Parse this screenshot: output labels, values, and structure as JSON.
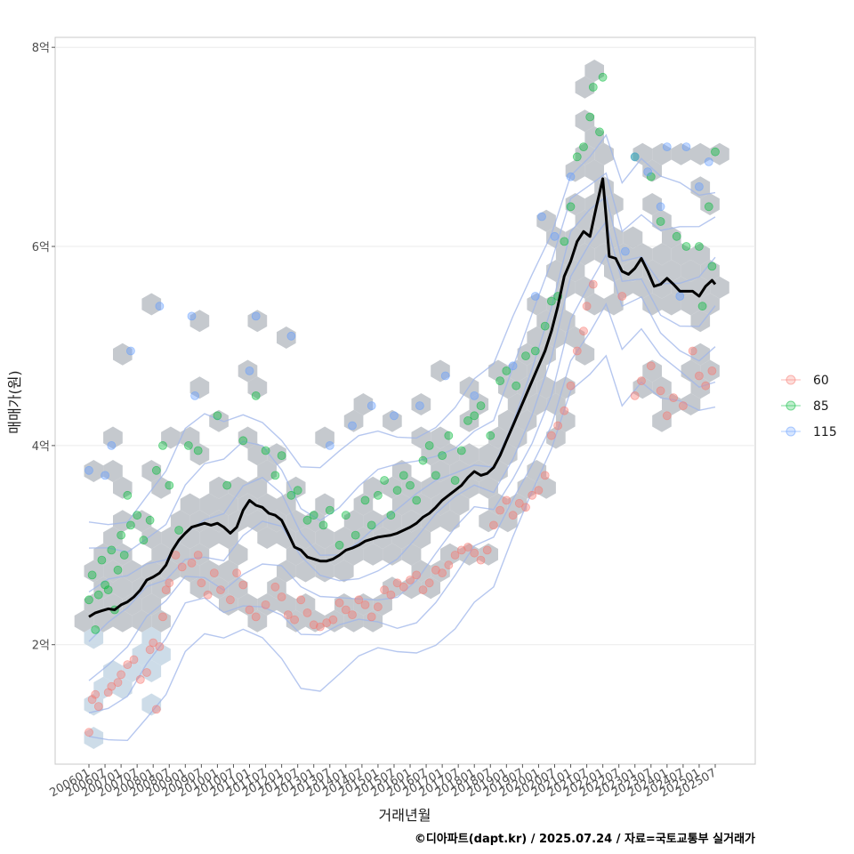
{
  "chart_data": {
    "type": "scatter",
    "xlabel": "거래년월",
    "ylabel": "매매가(원)",
    "caption": "©디아파트(dapt.kr) / 2025.07.24 / 자료=국토교통부 실거래가",
    "ylim": [
      0.8,
      8.1
    ],
    "yticks": [
      {
        "value": 2,
        "label": "2억"
      },
      {
        "value": 4,
        "label": "4억"
      },
      {
        "value": 6,
        "label": "6억"
      },
      {
        "value": 8,
        "label": "8억"
      }
    ],
    "xlim": [
      2005.5,
      2026.2
    ],
    "xticks": [
      "200601",
      "200607",
      "200701",
      "200707",
      "200801",
      "200807",
      "200901",
      "200907",
      "201001",
      "201007",
      "201101",
      "201107",
      "201201",
      "201207",
      "201301",
      "201307",
      "201401",
      "201407",
      "201501",
      "201507",
      "201601",
      "201607",
      "201701",
      "201707",
      "201801",
      "201807",
      "201901",
      "201907",
      "202001",
      "202007",
      "202101",
      "202107",
      "202201",
      "202207",
      "202301",
      "202307",
      "202401",
      "202407",
      "202501",
      "202507"
    ],
    "legend": {
      "placement": "right",
      "items": [
        {
          "label": "60",
          "color": "#F8766D"
        },
        {
          "label": "85",
          "color": "#00BA38"
        },
        {
          "label": "115",
          "color": "#619CFF"
        }
      ]
    },
    "colors": {
      "hex_fill": "#bfc3c9",
      "hex_light": "#c8d8e6",
      "median_line": "#000000",
      "density_contour": "#9db4ea"
    },
    "median_line": [
      [
        2006.0,
        2.28
      ],
      [
        2006.2,
        2.32
      ],
      [
        2006.4,
        2.34
      ],
      [
        2006.6,
        2.36
      ],
      [
        2006.8,
        2.35
      ],
      [
        2007.0,
        2.4
      ],
      [
        2007.2,
        2.43
      ],
      [
        2007.4,
        2.48
      ],
      [
        2007.6,
        2.55
      ],
      [
        2007.8,
        2.65
      ],
      [
        2008.0,
        2.68
      ],
      [
        2008.2,
        2.72
      ],
      [
        2008.4,
        2.8
      ],
      [
        2008.6,
        2.95
      ],
      [
        2008.8,
        3.05
      ],
      [
        2009.0,
        3.12
      ],
      [
        2009.2,
        3.18
      ],
      [
        2009.4,
        3.2
      ],
      [
        2009.6,
        3.22
      ],
      [
        2009.8,
        3.2
      ],
      [
        2010.0,
        3.22
      ],
      [
        2010.2,
        3.18
      ],
      [
        2010.4,
        3.12
      ],
      [
        2010.6,
        3.18
      ],
      [
        2010.8,
        3.35
      ],
      [
        2011.0,
        3.45
      ],
      [
        2011.2,
        3.4
      ],
      [
        2011.4,
        3.38
      ],
      [
        2011.6,
        3.32
      ],
      [
        2011.8,
        3.3
      ],
      [
        2012.0,
        3.25
      ],
      [
        2012.2,
        3.12
      ],
      [
        2012.4,
        2.98
      ],
      [
        2012.6,
        2.95
      ],
      [
        2012.8,
        2.88
      ],
      [
        2013.0,
        2.86
      ],
      [
        2013.2,
        2.84
      ],
      [
        2013.4,
        2.84
      ],
      [
        2013.6,
        2.86
      ],
      [
        2013.8,
        2.9
      ],
      [
        2014.0,
        2.95
      ],
      [
        2014.2,
        2.97
      ],
      [
        2014.4,
        3.0
      ],
      [
        2014.6,
        3.04
      ],
      [
        2014.8,
        3.06
      ],
      [
        2015.0,
        3.08
      ],
      [
        2015.2,
        3.09
      ],
      [
        2015.4,
        3.1
      ],
      [
        2015.6,
        3.12
      ],
      [
        2015.8,
        3.15
      ],
      [
        2016.0,
        3.18
      ],
      [
        2016.2,
        3.22
      ],
      [
        2016.4,
        3.28
      ],
      [
        2016.6,
        3.32
      ],
      [
        2016.8,
        3.38
      ],
      [
        2017.0,
        3.45
      ],
      [
        2017.2,
        3.5
      ],
      [
        2017.4,
        3.55
      ],
      [
        2017.6,
        3.6
      ],
      [
        2017.8,
        3.68
      ],
      [
        2018.0,
        3.74
      ],
      [
        2018.2,
        3.7
      ],
      [
        2018.4,
        3.72
      ],
      [
        2018.6,
        3.78
      ],
      [
        2018.8,
        3.9
      ],
      [
        2019.0,
        4.05
      ],
      [
        2019.2,
        4.2
      ],
      [
        2019.4,
        4.35
      ],
      [
        2019.6,
        4.5
      ],
      [
        2019.8,
        4.65
      ],
      [
        2020.0,
        4.8
      ],
      [
        2020.2,
        4.95
      ],
      [
        2020.4,
        5.15
      ],
      [
        2020.6,
        5.4
      ],
      [
        2020.8,
        5.7
      ],
      [
        2021.0,
        5.85
      ],
      [
        2021.2,
        6.05
      ],
      [
        2021.4,
        6.15
      ],
      [
        2021.6,
        6.1
      ],
      [
        2021.8,
        6.4
      ],
      [
        2022.0,
        6.68
      ],
      [
        2022.1,
        6.3
      ],
      [
        2022.2,
        5.9
      ],
      [
        2022.4,
        5.88
      ],
      [
        2022.6,
        5.75
      ],
      [
        2022.8,
        5.72
      ],
      [
        2023.0,
        5.78
      ],
      [
        2023.2,
        5.88
      ],
      [
        2023.4,
        5.75
      ],
      [
        2023.6,
        5.6
      ],
      [
        2023.8,
        5.62
      ],
      [
        2024.0,
        5.68
      ],
      [
        2024.2,
        5.62
      ],
      [
        2024.4,
        5.55
      ],
      [
        2024.6,
        5.55
      ],
      [
        2024.8,
        5.55
      ],
      [
        2025.0,
        5.5
      ],
      [
        2025.2,
        5.6
      ],
      [
        2025.4,
        5.66
      ],
      [
        2025.5,
        5.62
      ]
    ],
    "points_60": [
      [
        2006.0,
        1.12
      ],
      [
        2006.1,
        1.45
      ],
      [
        2006.2,
        1.5
      ],
      [
        2006.3,
        1.38
      ],
      [
        2006.6,
        1.52
      ],
      [
        2006.7,
        1.58
      ],
      [
        2006.9,
        1.62
      ],
      [
        2007.0,
        1.7
      ],
      [
        2007.2,
        1.8
      ],
      [
        2007.4,
        1.85
      ],
      [
        2007.6,
        1.65
      ],
      [
        2007.8,
        1.72
      ],
      [
        2007.9,
        1.95
      ],
      [
        2008.0,
        2.02
      ],
      [
        2008.2,
        1.98
      ],
      [
        2008.3,
        2.28
      ],
      [
        2008.4,
        2.55
      ],
      [
        2008.5,
        2.62
      ],
      [
        2008.1,
        1.35
      ],
      [
        2008.7,
        2.9
      ],
      [
        2008.9,
        2.78
      ],
      [
        2009.2,
        2.82
      ],
      [
        2009.4,
        2.9
      ],
      [
        2009.5,
        2.62
      ],
      [
        2009.7,
        2.5
      ],
      [
        2009.9,
        2.72
      ],
      [
        2010.1,
        2.55
      ],
      [
        2010.4,
        2.45
      ],
      [
        2010.6,
        2.72
      ],
      [
        2010.8,
        2.6
      ],
      [
        2011.0,
        2.35
      ],
      [
        2011.2,
        2.28
      ],
      [
        2011.5,
        2.4
      ],
      [
        2011.8,
        2.58
      ],
      [
        2012.0,
        2.48
      ],
      [
        2012.2,
        2.3
      ],
      [
        2012.4,
        2.25
      ],
      [
        2012.6,
        2.45
      ],
      [
        2012.8,
        2.32
      ],
      [
        2013.0,
        2.2
      ],
      [
        2013.2,
        2.18
      ],
      [
        2013.4,
        2.22
      ],
      [
        2013.6,
        2.25
      ],
      [
        2013.8,
        2.42
      ],
      [
        2014.0,
        2.35
      ],
      [
        2014.2,
        2.3
      ],
      [
        2014.4,
        2.45
      ],
      [
        2014.6,
        2.4
      ],
      [
        2014.8,
        2.28
      ],
      [
        2015.0,
        2.38
      ],
      [
        2015.2,
        2.55
      ],
      [
        2015.4,
        2.5
      ],
      [
        2015.6,
        2.62
      ],
      [
        2015.8,
        2.58
      ],
      [
        2016.0,
        2.65
      ],
      [
        2016.2,
        2.7
      ],
      [
        2016.4,
        2.55
      ],
      [
        2016.6,
        2.62
      ],
      [
        2016.8,
        2.75
      ],
      [
        2017.0,
        2.72
      ],
      [
        2017.2,
        2.8
      ],
      [
        2017.4,
        2.9
      ],
      [
        2017.6,
        2.95
      ],
      [
        2017.8,
        2.98
      ],
      [
        2018.0,
        2.92
      ],
      [
        2018.2,
        2.85
      ],
      [
        2018.4,
        2.95
      ],
      [
        2018.6,
        3.2
      ],
      [
        2018.8,
        3.35
      ],
      [
        2019.0,
        3.45
      ],
      [
        2019.2,
        3.3
      ],
      [
        2019.4,
        3.42
      ],
      [
        2019.6,
        3.38
      ],
      [
        2019.8,
        3.5
      ],
      [
        2020.0,
        3.55
      ],
      [
        2020.2,
        3.7
      ],
      [
        2020.4,
        4.1
      ],
      [
        2020.6,
        4.2
      ],
      [
        2020.8,
        4.35
      ],
      [
        2021.0,
        4.6
      ],
      [
        2021.2,
        4.95
      ],
      [
        2021.4,
        5.15
      ],
      [
        2021.5,
        5.4
      ],
      [
        2021.7,
        5.62
      ],
      [
        2022.6,
        5.5
      ],
      [
        2023.2,
        4.65
      ],
      [
        2023.5,
        4.8
      ],
      [
        2023.8,
        4.55
      ],
      [
        2024.2,
        4.48
      ],
      [
        2024.5,
        4.4
      ],
      [
        2024.8,
        4.95
      ],
      [
        2025.0,
        4.7
      ],
      [
        2025.2,
        4.6
      ],
      [
        2025.4,
        4.75
      ],
      [
        2023.0,
        4.5
      ],
      [
        2024.0,
        4.3
      ]
    ],
    "points_85": [
      [
        2006.0,
        2.45
      ],
      [
        2006.1,
        2.7
      ],
      [
        2006.2,
        2.15
      ],
      [
        2006.3,
        2.5
      ],
      [
        2006.4,
        2.85
      ],
      [
        2006.5,
        2.6
      ],
      [
        2006.6,
        2.55
      ],
      [
        2006.7,
        2.95
      ],
      [
        2006.8,
        2.35
      ],
      [
        2006.9,
        2.75
      ],
      [
        2007.0,
        3.1
      ],
      [
        2007.1,
        2.9
      ],
      [
        2007.2,
        3.5
      ],
      [
        2007.3,
        3.2
      ],
      [
        2007.5,
        3.3
      ],
      [
        2007.7,
        3.05
      ],
      [
        2007.9,
        3.25
      ],
      [
        2008.1,
        3.75
      ],
      [
        2008.3,
        4.0
      ],
      [
        2008.5,
        3.6
      ],
      [
        2008.8,
        3.15
      ],
      [
        2009.1,
        4.0
      ],
      [
        2009.4,
        3.95
      ],
      [
        2010.0,
        4.3
      ],
      [
        2010.3,
        3.6
      ],
      [
        2010.8,
        4.05
      ],
      [
        2011.2,
        4.5
      ],
      [
        2011.5,
        3.95
      ],
      [
        2011.8,
        3.7
      ],
      [
        2012.0,
        3.9
      ],
      [
        2012.3,
        3.5
      ],
      [
        2012.5,
        3.55
      ],
      [
        2012.8,
        3.25
      ],
      [
        2013.0,
        3.3
      ],
      [
        2013.3,
        3.2
      ],
      [
        2013.5,
        3.35
      ],
      [
        2013.8,
        3.0
      ],
      [
        2014.0,
        3.3
      ],
      [
        2014.3,
        3.1
      ],
      [
        2014.6,
        3.45
      ],
      [
        2014.8,
        3.2
      ],
      [
        2015.0,
        3.5
      ],
      [
        2015.2,
        3.65
      ],
      [
        2015.4,
        3.3
      ],
      [
        2015.6,
        3.55
      ],
      [
        2015.8,
        3.7
      ],
      [
        2016.0,
        3.6
      ],
      [
        2016.2,
        3.45
      ],
      [
        2016.4,
        3.85
      ],
      [
        2016.6,
        4.0
      ],
      [
        2016.8,
        3.7
      ],
      [
        2017.0,
        3.9
      ],
      [
        2017.2,
        4.1
      ],
      [
        2017.4,
        3.65
      ],
      [
        2017.6,
        3.95
      ],
      [
        2017.8,
        4.25
      ],
      [
        2018.0,
        4.3
      ],
      [
        2018.2,
        4.4
      ],
      [
        2018.5,
        4.1
      ],
      [
        2018.8,
        4.65
      ],
      [
        2019.0,
        4.75
      ],
      [
        2019.3,
        4.6
      ],
      [
        2019.6,
        4.9
      ],
      [
        2019.9,
        4.95
      ],
      [
        2020.2,
        5.2
      ],
      [
        2020.4,
        5.45
      ],
      [
        2020.6,
        5.5
      ],
      [
        2020.8,
        6.05
      ],
      [
        2021.0,
        6.4
      ],
      [
        2021.2,
        6.9
      ],
      [
        2021.4,
        7.0
      ],
      [
        2021.6,
        7.3
      ],
      [
        2021.7,
        7.6
      ],
      [
        2022.0,
        7.7
      ],
      [
        2021.9,
        7.15
      ],
      [
        2023.0,
        6.9
      ],
      [
        2023.5,
        6.7
      ],
      [
        2023.8,
        6.25
      ],
      [
        2024.3,
        6.1
      ],
      [
        2024.6,
        6.0
      ],
      [
        2025.0,
        6.0
      ],
      [
        2025.3,
        6.4
      ],
      [
        2025.5,
        6.95
      ],
      [
        2025.4,
        5.8
      ],
      [
        2025.1,
        5.4
      ]
    ],
    "points_115": [
      [
        2006.0,
        3.75
      ],
      [
        2006.5,
        3.7
      ],
      [
        2006.7,
        4.0
      ],
      [
        2007.3,
        4.95
      ],
      [
        2008.2,
        5.4
      ],
      [
        2009.2,
        5.3
      ],
      [
        2009.3,
        4.5
      ],
      [
        2011.2,
        5.3
      ],
      [
        2011.0,
        4.75
      ],
      [
        2012.3,
        5.1
      ],
      [
        2013.5,
        4.0
      ],
      [
        2014.2,
        4.2
      ],
      [
        2014.8,
        4.4
      ],
      [
        2015.5,
        4.3
      ],
      [
        2016.3,
        4.4
      ],
      [
        2017.1,
        4.7
      ],
      [
        2018.0,
        4.5
      ],
      [
        2019.2,
        4.8
      ],
      [
        2019.9,
        5.5
      ],
      [
        2020.1,
        6.3
      ],
      [
        2020.5,
        6.1
      ],
      [
        2021.0,
        6.7
      ],
      [
        2023.0,
        6.9
      ],
      [
        2023.4,
        6.75
      ],
      [
        2024.0,
        7.0
      ],
      [
        2024.6,
        7.0
      ],
      [
        2025.0,
        6.6
      ],
      [
        2025.3,
        6.85
      ],
      [
        2024.4,
        5.5
      ],
      [
        2023.8,
        6.4
      ],
      [
        2022.7,
        5.95
      ]
    ]
  }
}
